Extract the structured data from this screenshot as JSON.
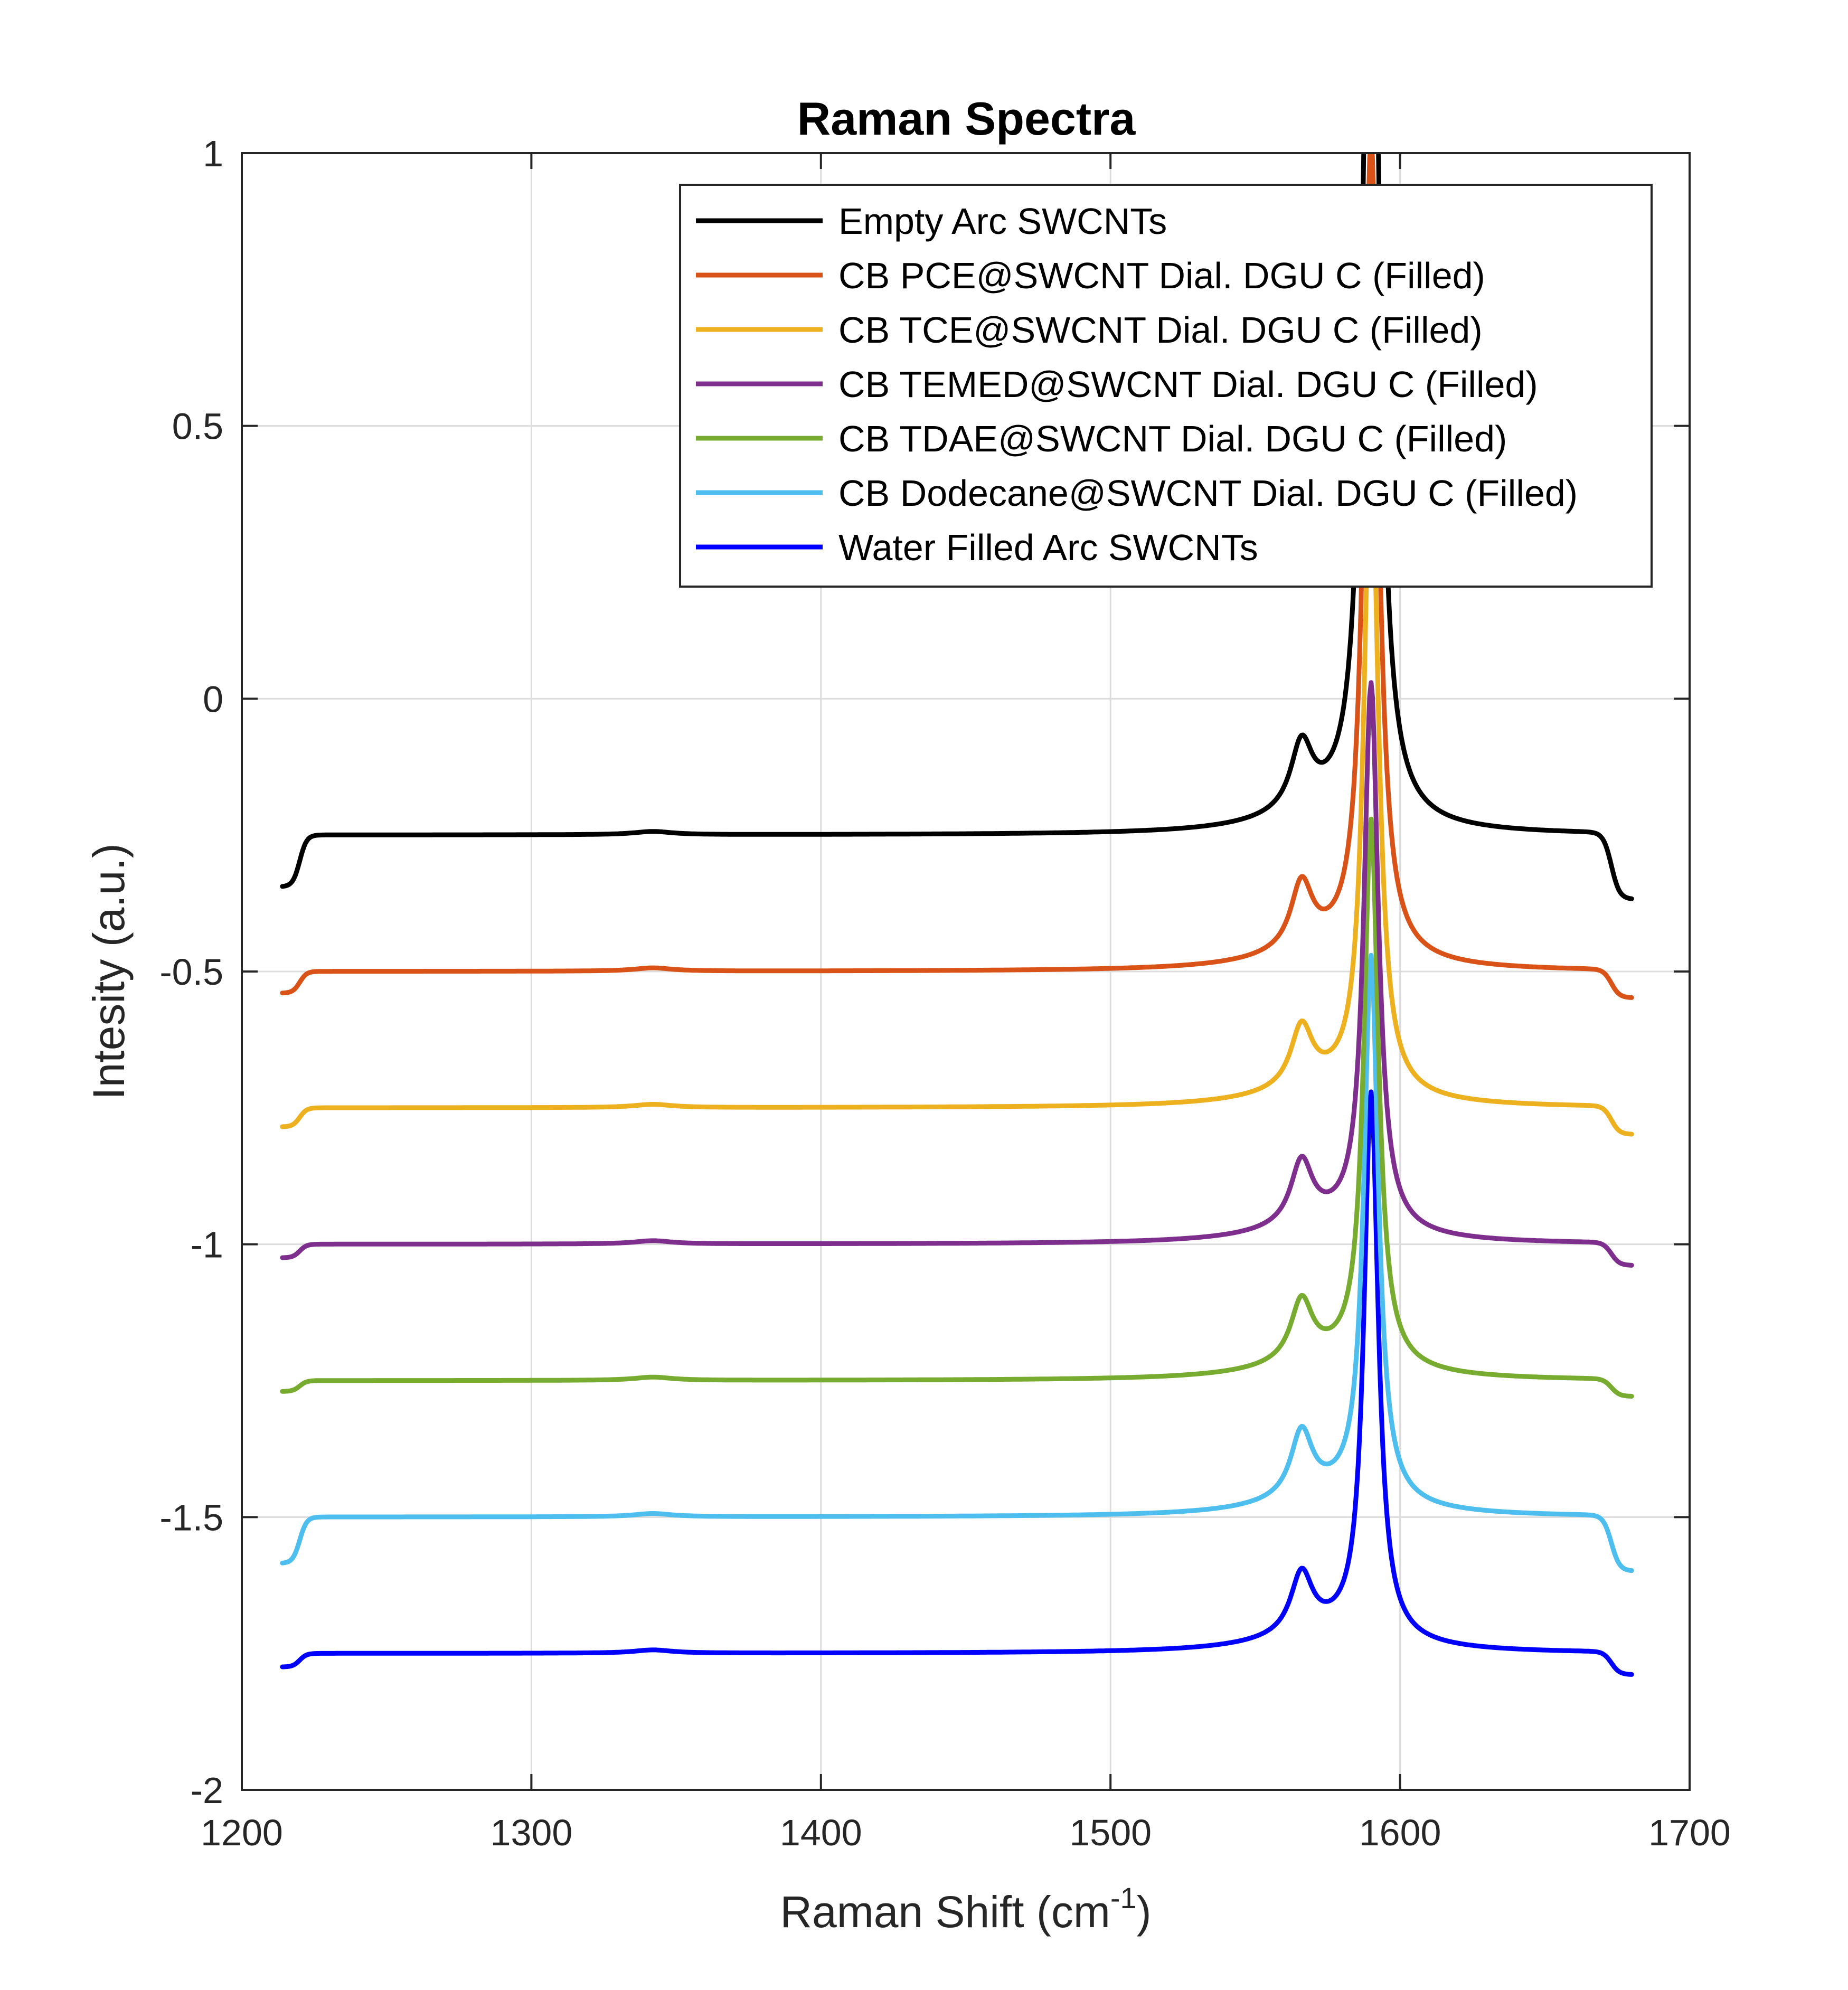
{
  "chart_data": {
    "type": "line",
    "title": "Raman Spectra",
    "xlabel": "Raman Shift (cm",
    "xlabel_superscript": "-1",
    "xlabel_suffix": ")",
    "ylabel": "Intesity (a.u.)",
    "xlim": [
      1200,
      1700
    ],
    "ylim": [
      -2,
      1
    ],
    "x_ticks": [
      1200,
      1300,
      1400,
      1500,
      1600,
      1700
    ],
    "y_ticks": [
      1,
      0.5,
      0,
      -0.5,
      -1,
      -1.5,
      -2
    ],
    "grid": true,
    "legend_position": "top-right",
    "x_range": [
      1214,
      1680
    ],
    "series": [
      {
        "name": "Empty Arc SWCNTs",
        "color": "#000000",
        "baseline": -0.25,
        "start": -0.345,
        "end": -0.37,
        "d_amp": 0.12,
        "g_amp": 2.1
      },
      {
        "name": "CB PCE@SWCNT Dial. DGU C (Filled)",
        "color": "#D95319",
        "baseline": -0.5,
        "start": -0.54,
        "end": -0.55,
        "d_amp": 0.12,
        "g_amp": 1.5
      },
      {
        "name": "CB TCE@SWCNT Dial. DGU C (Filled)",
        "color": "#EDB120",
        "baseline": -0.75,
        "start": -0.785,
        "end": -0.8,
        "d_amp": 0.11,
        "g_amp": 1.2
      },
      {
        "name": "CB TEMED@SWCNT Dial. DGU C (Filled)",
        "color": "#7E2F8E",
        "baseline": -1.0,
        "start": -1.025,
        "end": -1.04,
        "d_amp": 0.115,
        "g_amp": 1.0
      },
      {
        "name": "CB TDAE@SWCNT Dial. DGU C (Filled)",
        "color": "#77AC30",
        "baseline": -1.25,
        "start": -1.27,
        "end": -1.28,
        "d_amp": 0.11,
        "g_amp": 1.0
      },
      {
        "name": "CB Dodecane@SWCNT Dial. DGU C (Filled)",
        "color": "#4DBEEE",
        "baseline": -1.5,
        "start": -1.585,
        "end": -1.6,
        "d_amp": 0.12,
        "g_amp": 1.0
      },
      {
        "name": "Water Filled Arc SWCNTs",
        "color": "#0000FF",
        "baseline": -1.75,
        "start": -1.775,
        "end": -1.79,
        "d_amp": 0.11,
        "g_amp": 1.0
      }
    ]
  }
}
